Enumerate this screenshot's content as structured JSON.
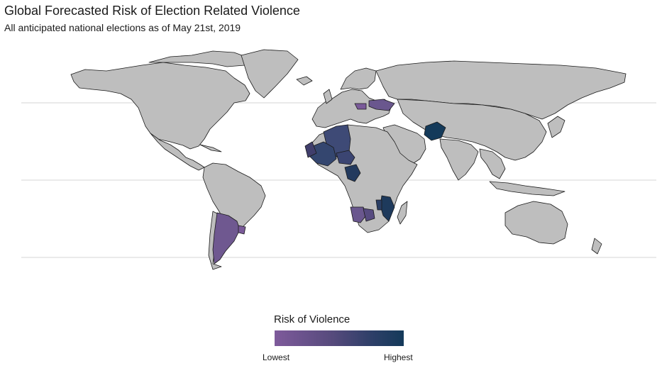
{
  "title": "Global Forecasted Risk of Election Related Violence",
  "subtitle": "All anticipated national elections as of May 21st, 2019",
  "legend": {
    "title": "Risk of Violence",
    "low_label": "Lowest",
    "high_label": "Highest",
    "scale_colors": [
      "#7e5a9b",
      "#564a7c",
      "#2e3f68",
      "#143a5a"
    ]
  },
  "colors": {
    "land_no_election": "#bebebe",
    "border": "#1a1a1a",
    "graticule": "#d6d6d6"
  }
}
